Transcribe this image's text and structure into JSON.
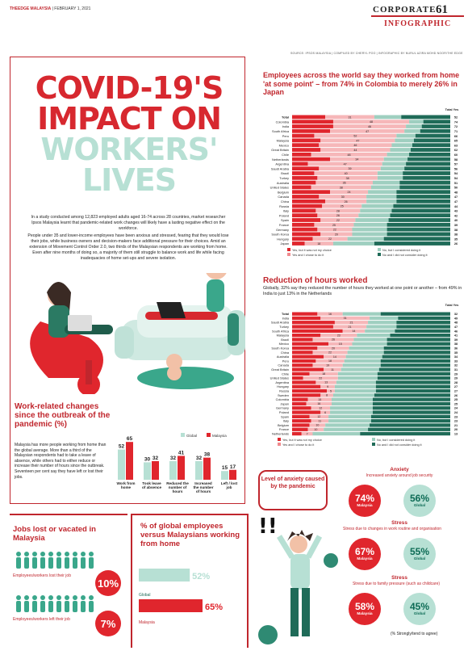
{
  "header": {
    "masthead_brand": "THEEDGE MALAYSIA",
    "masthead_date": "FEBRUARY 1, 2021",
    "section": "CORPORATE",
    "page_number": "61",
    "label": "INFOGRAPHIC",
    "credits": "SOURCE: IPSOS MALAYSIA | COMPILED BY CHERYL POO | INFOGRAPHIC BY NURUL AZIRA MOHD NOOR/THE EDGE"
  },
  "title": {
    "line1": "COVID-19'S",
    "line2": "IMPACT ON",
    "line3": "WORKERS'",
    "line4": "LIVES"
  },
  "intro": [
    "In a study conducted among 12,823 employed adults aged 16-74 across 28 countries, market researcher Ipsos Malaysia learnt that pandemic-related work changes will likely have a lasting negative effect on the workforce.",
    "People under 35 and lower-income employees have been anxious and stressed, fearing that they would lose their jobs, while business owners and decision-makers face additional pressure for their choices. Amid an extension of Movement Control Order 2.0, two thirds of the Malaysian respondents are working from home. Even after nine months of doing so, a majority of them still struggle to balance work and life while facing inadequacies of home set-ups and severe isolation."
  ],
  "work_changes": {
    "title": "Work-related changes since the outbreak of the pandemic (%)",
    "text": "Malaysia has more people working from home than the global average. More than a third of the Malaysian respondents had to take a leave of absence, while others had to either reduce or increase their number of hours since the outbreak. Seventeen per cent say they have left or lost their jobs.",
    "legend": {
      "global": "Global",
      "malaysia": "Malaysia"
    },
    "colors": {
      "global": "#b7e0d4",
      "malaysia": "#e0262d"
    }
  },
  "employees_chart": {
    "title": "Employees across the world say they worked from home 'at some point' – from 74% in Colombia to merely 26% in Japan",
    "total_yes_label": "Total Yes",
    "legend": [
      "Yes, but it was not my choice",
      "Yes and I chose to do it",
      "No, but I considered doing it",
      "No and I did not consider doing it"
    ]
  },
  "reduction_chart": {
    "title": "Reduction of hours worked",
    "subtitle": "Globally, 32% say they reduced the number of hours they worked at one point or another – from 49% in India to just 13% in the Netherlands",
    "total_yes_label": "Total Yes",
    "legend": [
      "Yes, but it was not my choice",
      "Yes and I chose to do it",
      "No, but I considered doing it",
      "No and I did not consider doing it"
    ]
  },
  "chart_data": [
    {
      "type": "bar",
      "title": "Work-related changes since the outbreak of the pandemic (%)",
      "categories": [
        "Work from home",
        "Took leave of absence",
        "Reduced the number of hours",
        "Increased the number of hours",
        "Left / lost job"
      ],
      "series": [
        {
          "name": "Global",
          "values": [
            52,
            30,
            32,
            32,
            15
          ]
        },
        {
          "name": "Malaysia",
          "values": [
            65,
            32,
            41,
            38,
            17
          ]
        }
      ]
    },
    {
      "type": "bar",
      "title": "Employees across the world say they worked from home 'at some point' – from 74% in Colombia to merely 26% in Japan",
      "categories": [
        "Total",
        "Colombia",
        "India",
        "South Africa",
        "Peru",
        "Malaysia",
        "Mexico",
        "Great Britain",
        "Chile",
        "Netherlands",
        "Argentina",
        "Saudi Arabia",
        "Brazil",
        "Turkey",
        "Australia",
        "United States",
        "Belgium",
        "Canada",
        "China",
        "Russia",
        "Italy",
        "Poland",
        "Spain",
        "France",
        "Germany",
        "South Korea",
        "Hungary",
        "Japan"
      ],
      "total_yes": [
        52,
        74,
        72,
        71,
        66,
        65,
        63,
        62,
        60,
        58,
        57,
        56,
        54,
        54,
        51,
        50,
        48,
        47,
        47,
        44,
        43,
        42,
        40,
        39,
        38,
        38,
        35,
        26
      ],
      "chose_values": [
        31,
        48,
        46,
        47,
        52,
        47,
        46,
        44,
        48,
        34,
        47,
        39,
        40,
        38,
        36,
        38,
        24,
        30,
        26,
        25,
        28,
        26,
        22,
        25,
        22,
        20,
        22,
        18
      ]
    },
    {
      "type": "bar",
      "title": "Reduction of hours worked",
      "categories": [
        "Total",
        "India",
        "Saudi Arabia",
        "Turkey",
        "South Africa",
        "Malaysia",
        "Brazil",
        "Mexico",
        "South Korea",
        "China",
        "Australia",
        "Peru",
        "Canada",
        "Great Britain",
        "Chile",
        "United States",
        "Argentina",
        "Hungary",
        "Russia",
        "Sweden",
        "Colombia",
        "Japan",
        "Germany",
        "Poland",
        "Spain",
        "Italy",
        "Belgium",
        "France",
        "Netherlands"
      ],
      "total_yes": [
        32,
        49,
        48,
        47,
        46,
        41,
        39,
        38,
        36,
        35,
        34,
        33,
        32,
        31,
        29,
        29,
        28,
        27,
        27,
        26,
        25,
        25,
        24,
        24,
        23,
        23,
        21,
        20,
        13
      ],
      "chose_values": [
        16,
        31,
        21,
        21,
        14,
        23,
        26,
        15,
        20,
        22,
        14,
        18,
        19,
        11,
        18,
        22,
        13,
        9,
        5,
        8,
        15,
        16,
        12,
        6,
        12,
        11,
        10,
        10,
        7
      ]
    },
    {
      "type": "bar",
      "title": "% of global employees versus Malaysians working from home",
      "categories": [
        "Global",
        "Malaysia"
      ],
      "values": [
        52,
        65
      ]
    }
  ],
  "anxiety": {
    "bubble": "Level of anxiety caused by the pandemic",
    "items": [
      {
        "head": "Anxiety",
        "sub": "Increased anxiety around job security",
        "malaysia": "74%",
        "global": "56%"
      },
      {
        "head": "Stress",
        "sub": "Stress due to changes in work routine and organisation",
        "malaysia": "67%",
        "global": "55%"
      },
      {
        "head": "Stress",
        "sub": "Stress due to family pressure (such as childcare)",
        "malaysia": "58%",
        "global": "45%"
      }
    ],
    "malaysia_label": "Malaysia",
    "global_label": "Global",
    "footnote": "(% Strongly/tend to agree)"
  },
  "jobs": {
    "title": "Jobs lost or vacated in Malaysia",
    "row1_label": "Employees/workers lost their job",
    "row1_value": "10%",
    "row2_label": "Employees/workers left their job",
    "row2_value": "7%"
  },
  "wfh_compare": {
    "title": "% of global employees versus Malaysians working from home",
    "global_label": "Global",
    "global_value": "52%",
    "malaysia_label": "Malaysia",
    "malaysia_value": "65%"
  }
}
